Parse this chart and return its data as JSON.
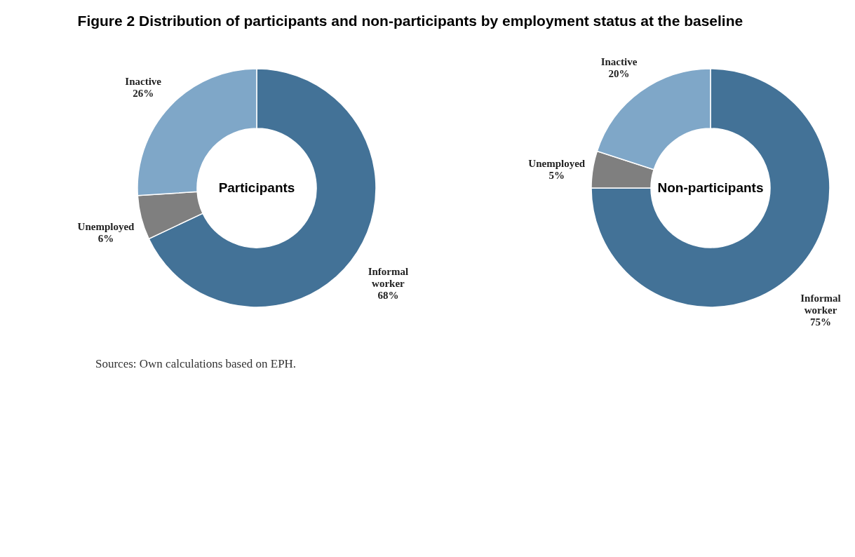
{
  "chart_data": [
    {
      "type": "donut",
      "title": "Figure 2   Distribution of participants and non-participants by employment status at the baseline",
      "subtitle": "Participants",
      "categories": [
        "Informal worker",
        "Unemployed",
        "Inactive"
      ],
      "values": [
        68,
        6,
        26
      ],
      "value_labels": [
        "68%",
        "6%",
        "26%"
      ],
      "colors": [
        "#437297",
        "#7f7f7f",
        "#7fa7c8"
      ],
      "legend": false
    },
    {
      "type": "donut",
      "subtitle": "Non-participants",
      "categories": [
        "Informal worker",
        "Unemployed",
        "Inactive"
      ],
      "values": [
        75,
        5,
        20
      ],
      "value_labels": [
        "75%",
        "5%",
        "20%"
      ],
      "colors": [
        "#437297",
        "#7f7f7f",
        "#7fa7c8"
      ],
      "legend": false,
      "annotations": [
        "Sources: Own calculations based on EPH."
      ]
    }
  ]
}
